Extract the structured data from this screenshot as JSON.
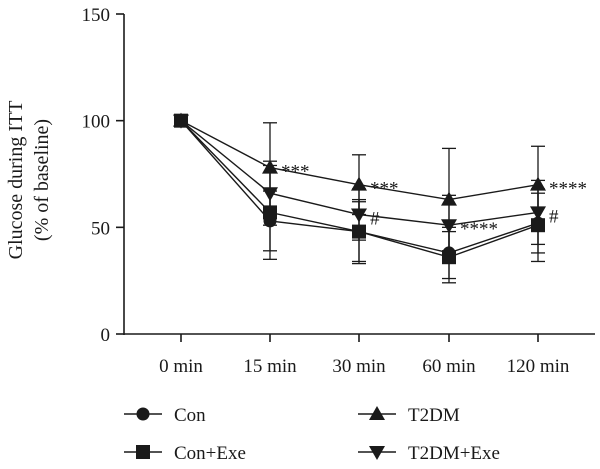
{
  "chart_data": {
    "type": "line",
    "title": "",
    "ylabel_line1": "Glucose during ITT",
    "ylabel_line2": "(% of baseline)",
    "xlabel": "",
    "categories": [
      "0 min",
      "15 min",
      "30 min",
      "60 min",
      "120 min"
    ],
    "ylim": [
      0,
      150
    ],
    "yticks": [
      0,
      50,
      100,
      150
    ],
    "grid": false,
    "legend_position": "bottom",
    "series": [
      {
        "name": "Con",
        "marker": "circle",
        "values": [
          100,
          53,
          48,
          38,
          52
        ],
        "errors": [
          0,
          14,
          14,
          12,
          14
        ]
      },
      {
        "name": "Con+Exe",
        "marker": "square",
        "values": [
          100,
          57,
          48,
          36,
          51
        ],
        "errors": [
          0,
          22,
          15,
          12,
          17
        ]
      },
      {
        "name": "T2DM",
        "marker": "triangle-up",
        "values": [
          100,
          78,
          70,
          63,
          70
        ],
        "errors": [
          0,
          21,
          14,
          24,
          18
        ]
      },
      {
        "name": "T2DM+Exe",
        "marker": "triangle-down",
        "values": [
          100,
          66,
          56,
          51,
          57
        ],
        "errors": [
          0,
          15,
          12,
          14,
          15
        ]
      }
    ],
    "annotations": [
      {
        "category": "15 min",
        "series": "T2DM",
        "text": "***"
      },
      {
        "category": "30 min",
        "series": "T2DM",
        "text": "***"
      },
      {
        "category": "30 min",
        "series": "T2DM+Exe",
        "text": "#"
      },
      {
        "category": "60 min",
        "series": "T2DM+Exe",
        "text": "****"
      },
      {
        "category": "120 min",
        "series": "T2DM",
        "text": "****"
      },
      {
        "category": "120 min",
        "series": "T2DM+Exe",
        "text": "#"
      }
    ],
    "colors": {
      "ink": "#1a1a1a",
      "background": "#ffffff"
    }
  }
}
